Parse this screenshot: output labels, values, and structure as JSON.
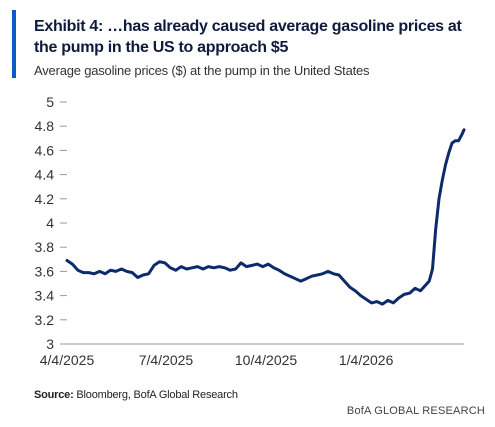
{
  "header": {
    "title": "Exhibit 4: …has already caused average gasoline prices at the pump in the US to approach $5",
    "subtitle": "Average gasoline prices ($) at the pump in the United States"
  },
  "footer": {
    "source_label": "Source:",
    "source_text": " Bloomberg, BofA Global Research",
    "brand": "BofA GLOBAL RESEARCH"
  },
  "colors": {
    "accent": "#0a5bc4",
    "line": "#0d2a6b",
    "axis": "#999999"
  },
  "chart_data": {
    "type": "line",
    "title": "Exhibit 4: …has already caused average gasoline prices at the pump in the US to approach $5",
    "subtitle": "Average gasoline prices ($) at the pump in the United States",
    "xlabel": "",
    "ylabel": "",
    "ylim": [
      3,
      5
    ],
    "yticks": [
      3,
      3.2,
      3.4,
      3.6,
      3.8,
      4,
      4.2,
      4.4,
      4.6,
      4.8,
      5
    ],
    "ytick_labels": [
      "3",
      "3.2",
      "3.4",
      "3.6",
      "3.8",
      "4",
      "4.2",
      "4.4",
      "4.6",
      "4.8",
      "5"
    ],
    "xlim": [
      "2025-04-04",
      "2026-04-04"
    ],
    "xticks": [
      "2025-04-04",
      "2025-07-04",
      "2025-10-04",
      "2026-01-04"
    ],
    "xtick_labels": [
      "4/4/2025",
      "7/4/2025",
      "10/4/2025",
      "1/4/2026"
    ],
    "grid": false,
    "legend": "none",
    "series": [
      {
        "x": [
          "2025-04-04",
          "2025-04-09",
          "2025-04-14",
          "2025-04-19",
          "2025-04-24",
          "2025-04-29",
          "2025-05-04",
          "2025-05-09",
          "2025-05-14",
          "2025-05-19",
          "2025-05-24",
          "2025-05-29",
          "2025-06-03",
          "2025-06-08",
          "2025-06-13",
          "2025-06-18",
          "2025-06-23",
          "2025-06-28",
          "2025-07-03",
          "2025-07-08",
          "2025-07-13",
          "2025-07-18",
          "2025-07-23",
          "2025-07-28",
          "2025-08-02",
          "2025-08-07",
          "2025-08-12",
          "2025-08-17",
          "2025-08-22",
          "2025-08-27",
          "2025-09-01",
          "2025-09-06",
          "2025-09-11",
          "2025-09-16",
          "2025-09-21",
          "2025-09-26",
          "2025-10-01",
          "2025-10-06",
          "2025-10-11",
          "2025-10-16",
          "2025-10-21",
          "2025-10-26",
          "2025-10-31",
          "2025-11-05",
          "2025-11-10",
          "2025-11-15",
          "2025-11-20",
          "2025-11-25",
          "2025-11-30",
          "2025-12-05",
          "2025-12-10",
          "2025-12-15",
          "2025-12-20",
          "2025-12-25",
          "2025-12-30",
          "2026-01-04",
          "2026-01-09",
          "2026-01-14",
          "2026-01-19",
          "2026-01-24",
          "2026-01-29",
          "2026-02-03",
          "2026-02-08",
          "2026-02-13",
          "2026-02-18",
          "2026-02-23",
          "2026-02-28",
          "2026-03-03",
          "2026-03-06",
          "2026-03-09",
          "2026-03-12",
          "2026-03-15",
          "2026-03-18",
          "2026-03-21",
          "2026-03-24",
          "2026-03-27",
          "2026-03-30",
          "2026-04-02",
          "2026-04-04"
        ],
        "values": [
          3.69,
          3.66,
          3.61,
          3.59,
          3.59,
          3.58,
          3.6,
          3.58,
          3.61,
          3.6,
          3.62,
          3.6,
          3.59,
          3.55,
          3.57,
          3.58,
          3.65,
          3.68,
          3.67,
          3.63,
          3.61,
          3.64,
          3.62,
          3.63,
          3.64,
          3.62,
          3.64,
          3.63,
          3.64,
          3.63,
          3.61,
          3.62,
          3.67,
          3.64,
          3.65,
          3.66,
          3.64,
          3.66,
          3.63,
          3.61,
          3.58,
          3.56,
          3.54,
          3.52,
          3.54,
          3.56,
          3.57,
          3.58,
          3.6,
          3.58,
          3.57,
          3.52,
          3.47,
          3.44,
          3.4,
          3.37,
          3.34,
          3.35,
          3.33,
          3.36,
          3.34,
          3.38,
          3.41,
          3.42,
          3.46,
          3.44,
          3.49,
          3.52,
          3.62,
          3.95,
          4.2,
          4.35,
          4.48,
          4.58,
          4.66,
          4.68,
          4.68,
          4.73,
          4.77
        ]
      }
    ]
  }
}
